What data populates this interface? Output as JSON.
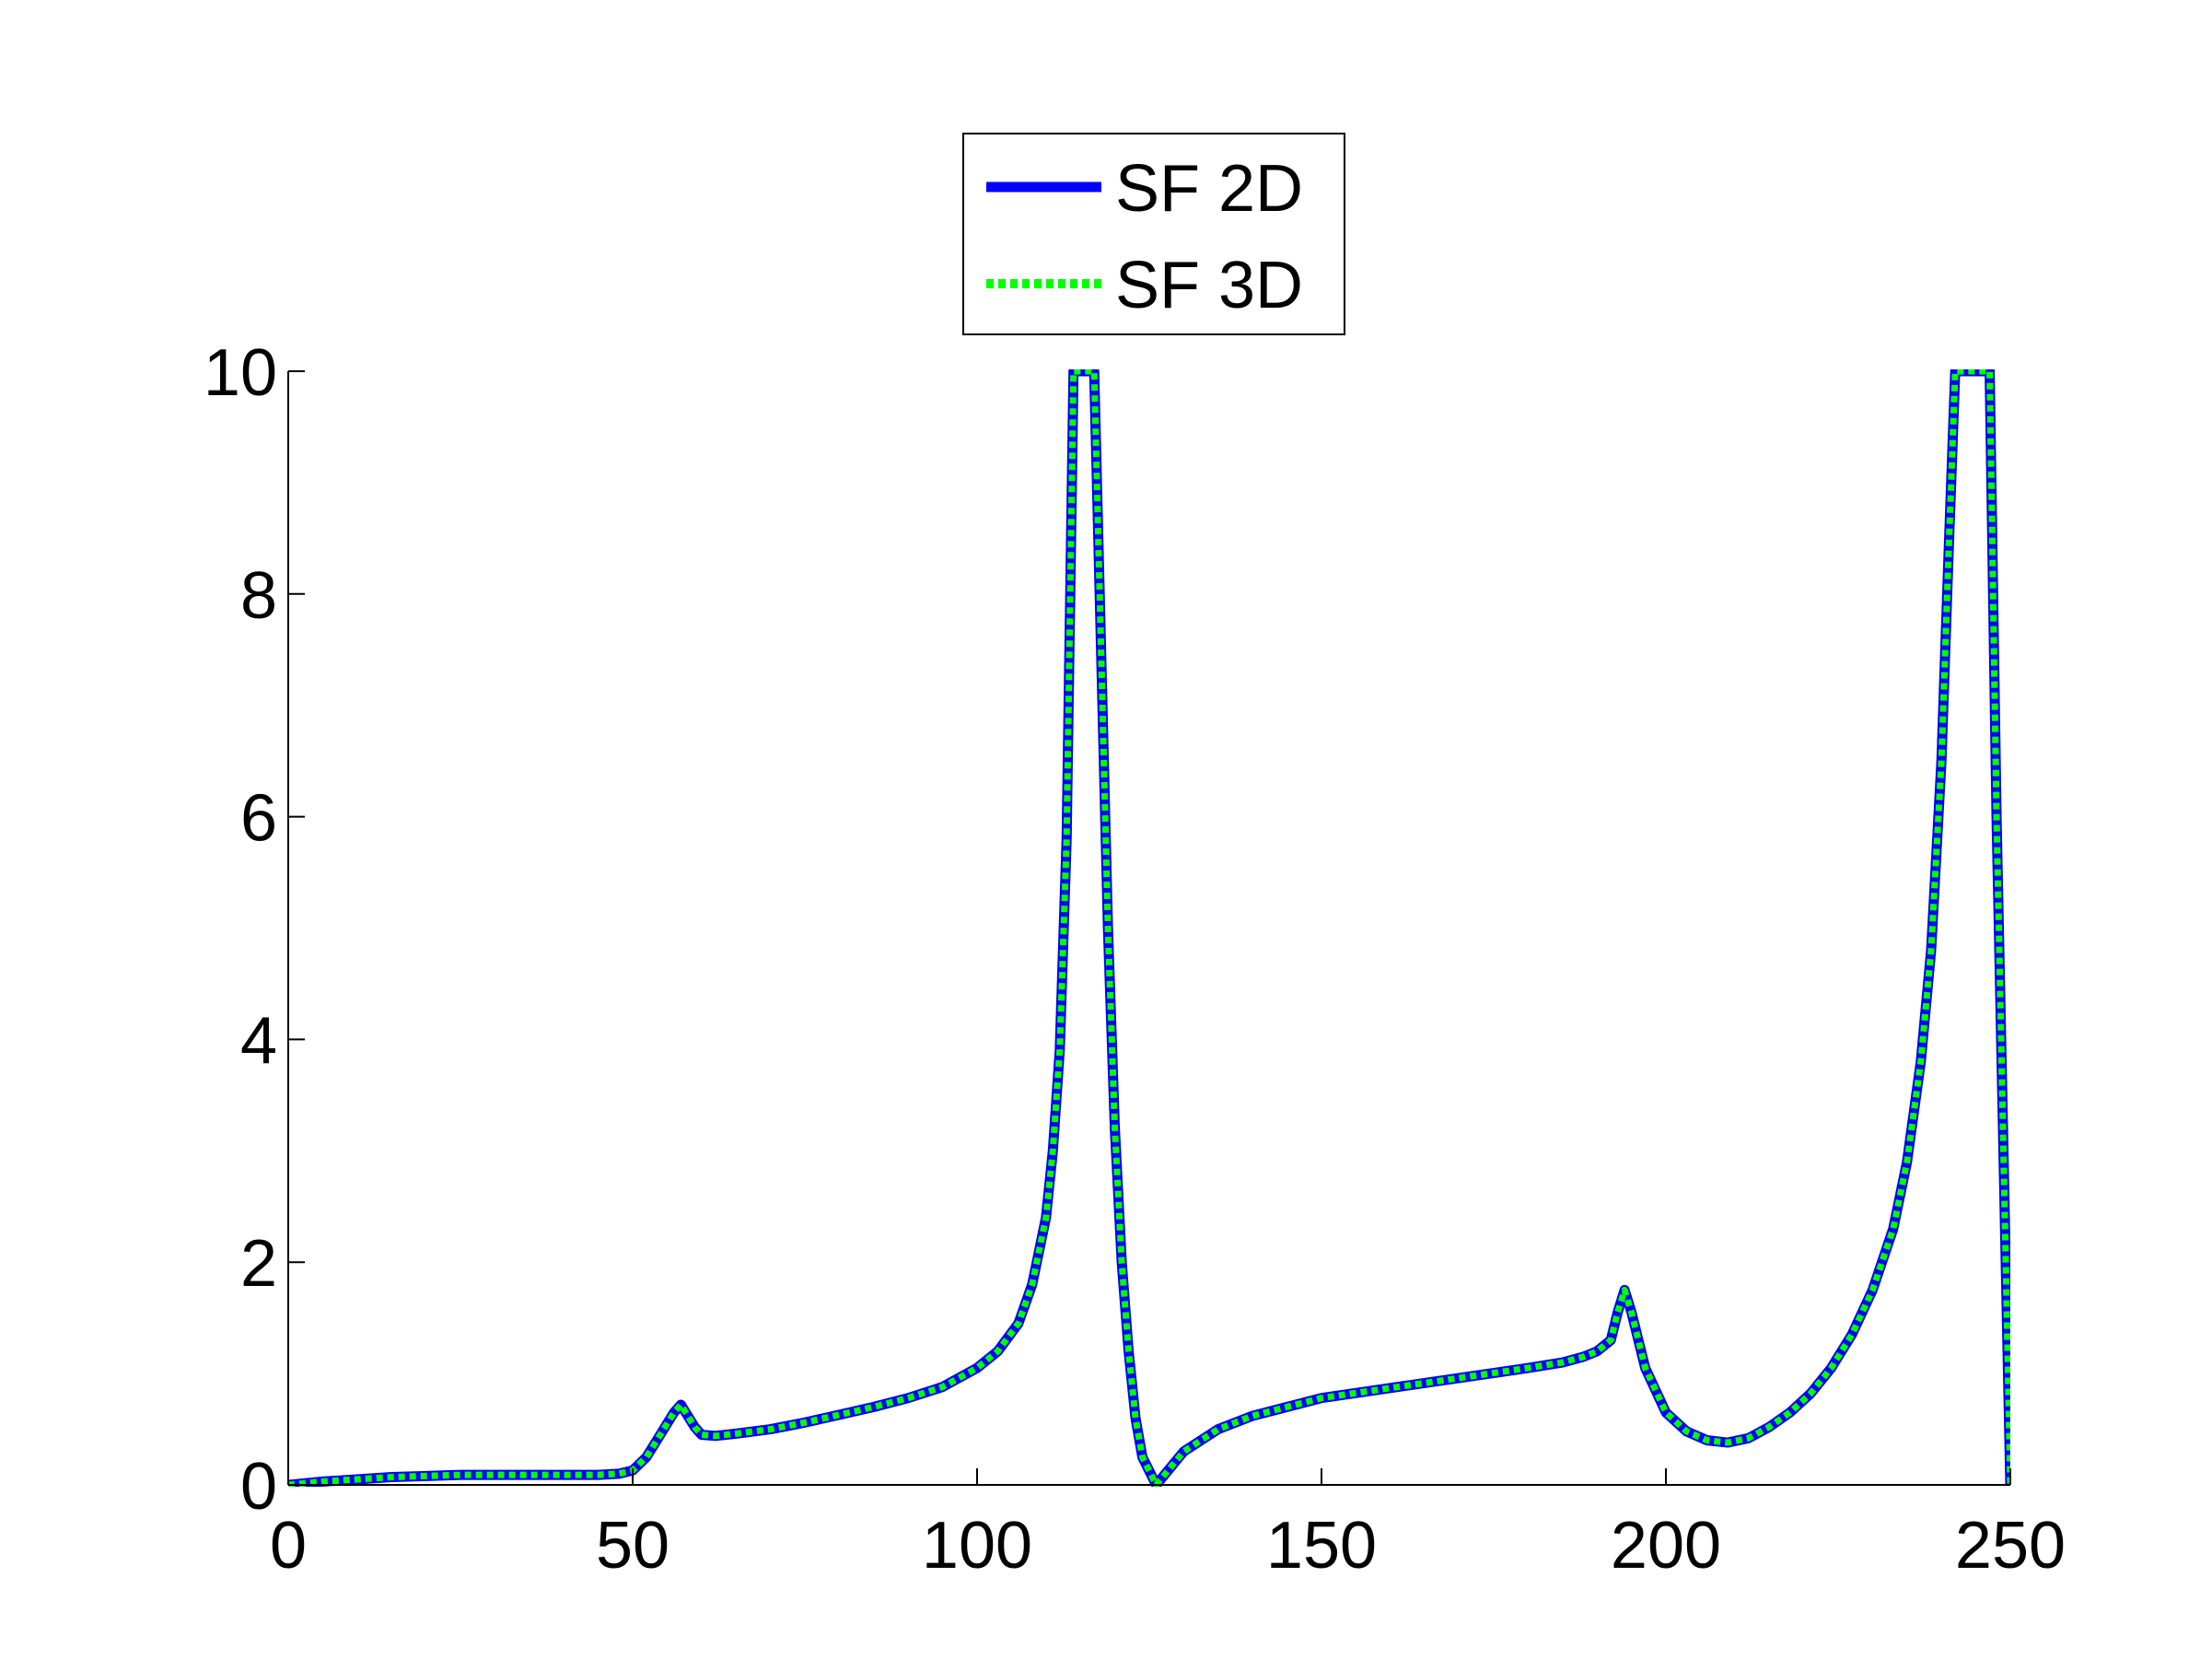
{
  "chart_data": {
    "type": "line",
    "title": "",
    "xlabel": "",
    "ylabel": "",
    "xlim": [
      0,
      250
    ],
    "ylim": [
      0,
      10
    ],
    "xticks": [
      0,
      50,
      100,
      150,
      200,
      250
    ],
    "yticks": [
      0,
      2,
      4,
      6,
      8,
      10
    ],
    "grid": false,
    "legend_position": "top-center",
    "series": [
      {
        "name": "SF 2D",
        "color": "#0000ff",
        "style": "solid",
        "x": [
          0,
          5,
          10,
          15,
          20,
          25,
          30,
          35,
          40,
          45,
          48,
          50,
          52,
          54,
          56,
          57,
          58,
          59,
          60,
          62,
          65,
          70,
          75,
          80,
          85,
          90,
          95,
          100,
          103,
          106,
          108,
          110,
          111,
          112,
          113,
          114,
          115,
          116,
          117,
          118,
          119,
          120,
          121,
          122,
          123,
          124,
          126,
          128,
          130,
          135,
          140,
          145,
          150,
          160,
          170,
          180,
          185,
          188,
          190,
          192,
          193,
          194,
          195,
          197,
          200,
          203,
          206,
          209,
          212,
          215,
          218,
          221,
          224,
          227,
          230,
          233,
          235,
          237,
          238.5,
          240,
          241,
          242,
          243,
          244,
          245,
          246,
          247,
          248,
          249,
          250
        ],
        "y": [
          0.0,
          0.03,
          0.05,
          0.07,
          0.08,
          0.09,
          0.09,
          0.09,
          0.09,
          0.09,
          0.1,
          0.13,
          0.25,
          0.45,
          0.65,
          0.72,
          0.62,
          0.52,
          0.45,
          0.44,
          0.46,
          0.5,
          0.56,
          0.63,
          0.7,
          0.78,
          0.88,
          1.05,
          1.2,
          1.45,
          1.8,
          2.4,
          3.0,
          3.9,
          5.8,
          10,
          10,
          10,
          10,
          7.5,
          5.0,
          3.2,
          2.0,
          1.2,
          0.6,
          0.25,
          0.0,
          0.15,
          0.3,
          0.5,
          0.62,
          0.7,
          0.78,
          0.87,
          0.96,
          1.05,
          1.1,
          1.15,
          1.2,
          1.3,
          1.55,
          1.75,
          1.55,
          1.05,
          0.65,
          0.48,
          0.4,
          0.38,
          0.42,
          0.52,
          0.65,
          0.82,
          1.05,
          1.35,
          1.75,
          2.3,
          2.9,
          3.8,
          4.8,
          6.5,
          8.3,
          10,
          10,
          10,
          10,
          10,
          10,
          6.0,
          3.0,
          0.0
        ]
      },
      {
        "name": "SF 3D",
        "color": "#00ff00",
        "style": "dotted",
        "x": [
          0,
          5,
          10,
          15,
          20,
          25,
          30,
          35,
          40,
          45,
          48,
          50,
          52,
          54,
          56,
          57,
          58,
          59,
          60,
          62,
          65,
          70,
          75,
          80,
          85,
          90,
          95,
          100,
          103,
          106,
          108,
          110,
          111,
          112,
          113,
          114,
          115,
          116,
          117,
          118,
          119,
          120,
          121,
          122,
          123,
          124,
          126,
          128,
          130,
          135,
          140,
          145,
          150,
          160,
          170,
          180,
          185,
          188,
          190,
          192,
          193,
          194,
          195,
          197,
          200,
          203,
          206,
          209,
          212,
          215,
          218,
          221,
          224,
          227,
          230,
          233,
          235,
          237,
          238.5,
          240,
          241,
          242,
          243,
          244,
          245,
          246,
          247,
          248,
          249,
          250
        ],
        "y": [
          0.0,
          0.03,
          0.05,
          0.07,
          0.08,
          0.09,
          0.09,
          0.09,
          0.09,
          0.09,
          0.1,
          0.13,
          0.25,
          0.45,
          0.65,
          0.72,
          0.62,
          0.52,
          0.45,
          0.44,
          0.46,
          0.5,
          0.56,
          0.63,
          0.7,
          0.78,
          0.88,
          1.05,
          1.2,
          1.45,
          1.8,
          2.4,
          3.0,
          3.9,
          5.8,
          10,
          10,
          10,
          10,
          7.5,
          5.0,
          3.2,
          2.0,
          1.2,
          0.6,
          0.25,
          0.0,
          0.15,
          0.3,
          0.5,
          0.62,
          0.7,
          0.78,
          0.87,
          0.96,
          1.05,
          1.1,
          1.15,
          1.2,
          1.3,
          1.55,
          1.75,
          1.55,
          1.05,
          0.65,
          0.48,
          0.4,
          0.38,
          0.42,
          0.52,
          0.65,
          0.82,
          1.05,
          1.35,
          1.75,
          2.3,
          2.9,
          3.8,
          4.8,
          6.5,
          8.3,
          10,
          10,
          10,
          10,
          10,
          10,
          6.0,
          3.0,
          0.0
        ]
      }
    ]
  }
}
